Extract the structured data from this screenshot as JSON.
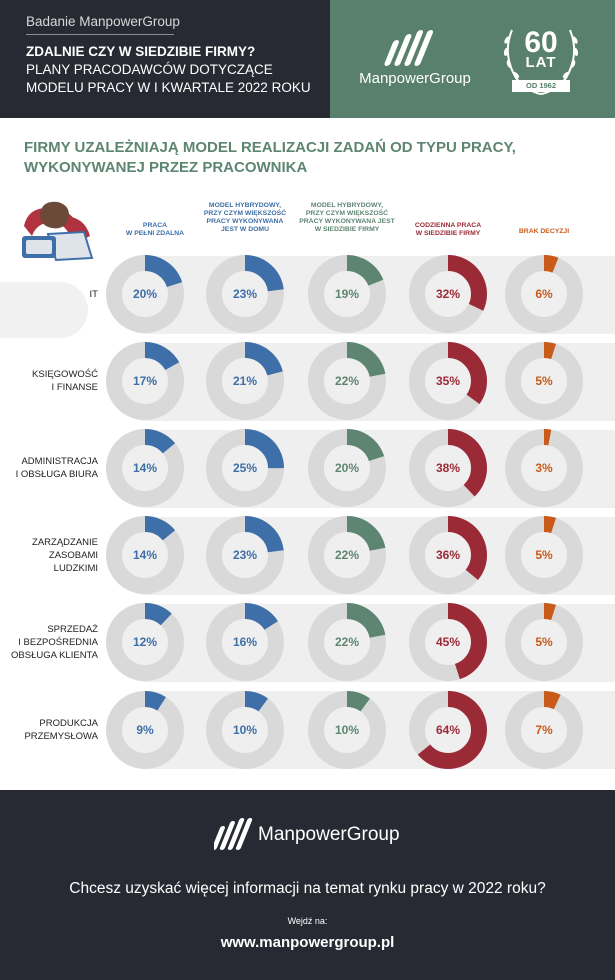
{
  "header": {
    "subtitle": "Badanie ManpowerGroup",
    "title_line1": "ZDALNIE CZY W SIEDZIBIE FIRMY?",
    "title_line2": "PLANY PRACODAWCÓW DOTYCZĄCE",
    "title_line3": "MODELU PRACY W I KWARTALE 2022 ROKU",
    "brand": "ManpowerGroup",
    "badge_number": "60",
    "badge_unit": "LAT",
    "badge_since": "OD 1962"
  },
  "section_title_line1": "FIRMY UZALEŻNIAJĄ MODEL REALIZACJI ZADAŃ OD TYPU PRACY,",
  "section_title_line2": "WYKONYWANEJ PRZEZ PRACOWNIKA",
  "colors": {
    "blue": "#3e6fa8",
    "green": "#5d8572",
    "red": "#9b2a37",
    "orange": "#c85a1a",
    "ring": "#d9d9d9",
    "band": "#efefef"
  },
  "chart_data": {
    "type": "donut",
    "columns": [
      {
        "label_lines": [
          "PRACA",
          "W PEŁNI ZDALNA"
        ],
        "color": "#3e6fa8"
      },
      {
        "label_lines": [
          "MODEL HYBRYDOWY,",
          "PRZY CZYM WIĘKSZOŚĆ",
          "PRACY WYKONYWANA",
          "JEST W DOMU"
        ],
        "color": "#3e6fa8"
      },
      {
        "label_lines": [
          "MODEL HYBRYDOWY,",
          "PRZY CZYM WIĘKSZOŚĆ",
          "PRACY WYKONYWANA JEST",
          "W SIEDZIBIE FIRMY"
        ],
        "color": "#5d8572"
      },
      {
        "label_lines": [
          "CODZIENNA PRACA",
          "W SIEDZIBIE FIRMY"
        ],
        "color": "#9b2a37"
      },
      {
        "label_lines": [
          "BRAK DECYZJI"
        ],
        "color": "#c85a1a"
      }
    ],
    "rows": [
      {
        "label_lines": [
          "IT"
        ],
        "values": [
          20,
          23,
          19,
          32,
          6
        ]
      },
      {
        "label_lines": [
          "KSIĘGOWOŚĆ",
          "I FINANSE"
        ],
        "values": [
          17,
          21,
          22,
          35,
          5
        ]
      },
      {
        "label_lines": [
          "ADMINISTRACJA",
          "I OBSŁUGA BIURA"
        ],
        "values": [
          14,
          25,
          20,
          38,
          3
        ]
      },
      {
        "label_lines": [
          "ZARZĄDZANIE",
          "ZASOBAMI",
          "LUDZKIMI"
        ],
        "values": [
          14,
          23,
          22,
          36,
          5
        ]
      },
      {
        "label_lines": [
          "SPRZEDAŻ",
          "I BEZPOŚREDNIA",
          "OBSŁUGA KLIENTA"
        ],
        "values": [
          12,
          16,
          22,
          45,
          5
        ]
      },
      {
        "label_lines": [
          "PRODUKCJA",
          "PRZEMYSŁOWA"
        ],
        "values": [
          9,
          10,
          10,
          64,
          7
        ]
      }
    ],
    "unit": "%"
  },
  "footer": {
    "brand": "ManpowerGroup",
    "question": "Chcesz uzyskać więcej informacji na temat rynku pracy w 2022 roku?",
    "visit": "Wejdź na:",
    "url": "www.manpowergroup.pl"
  }
}
